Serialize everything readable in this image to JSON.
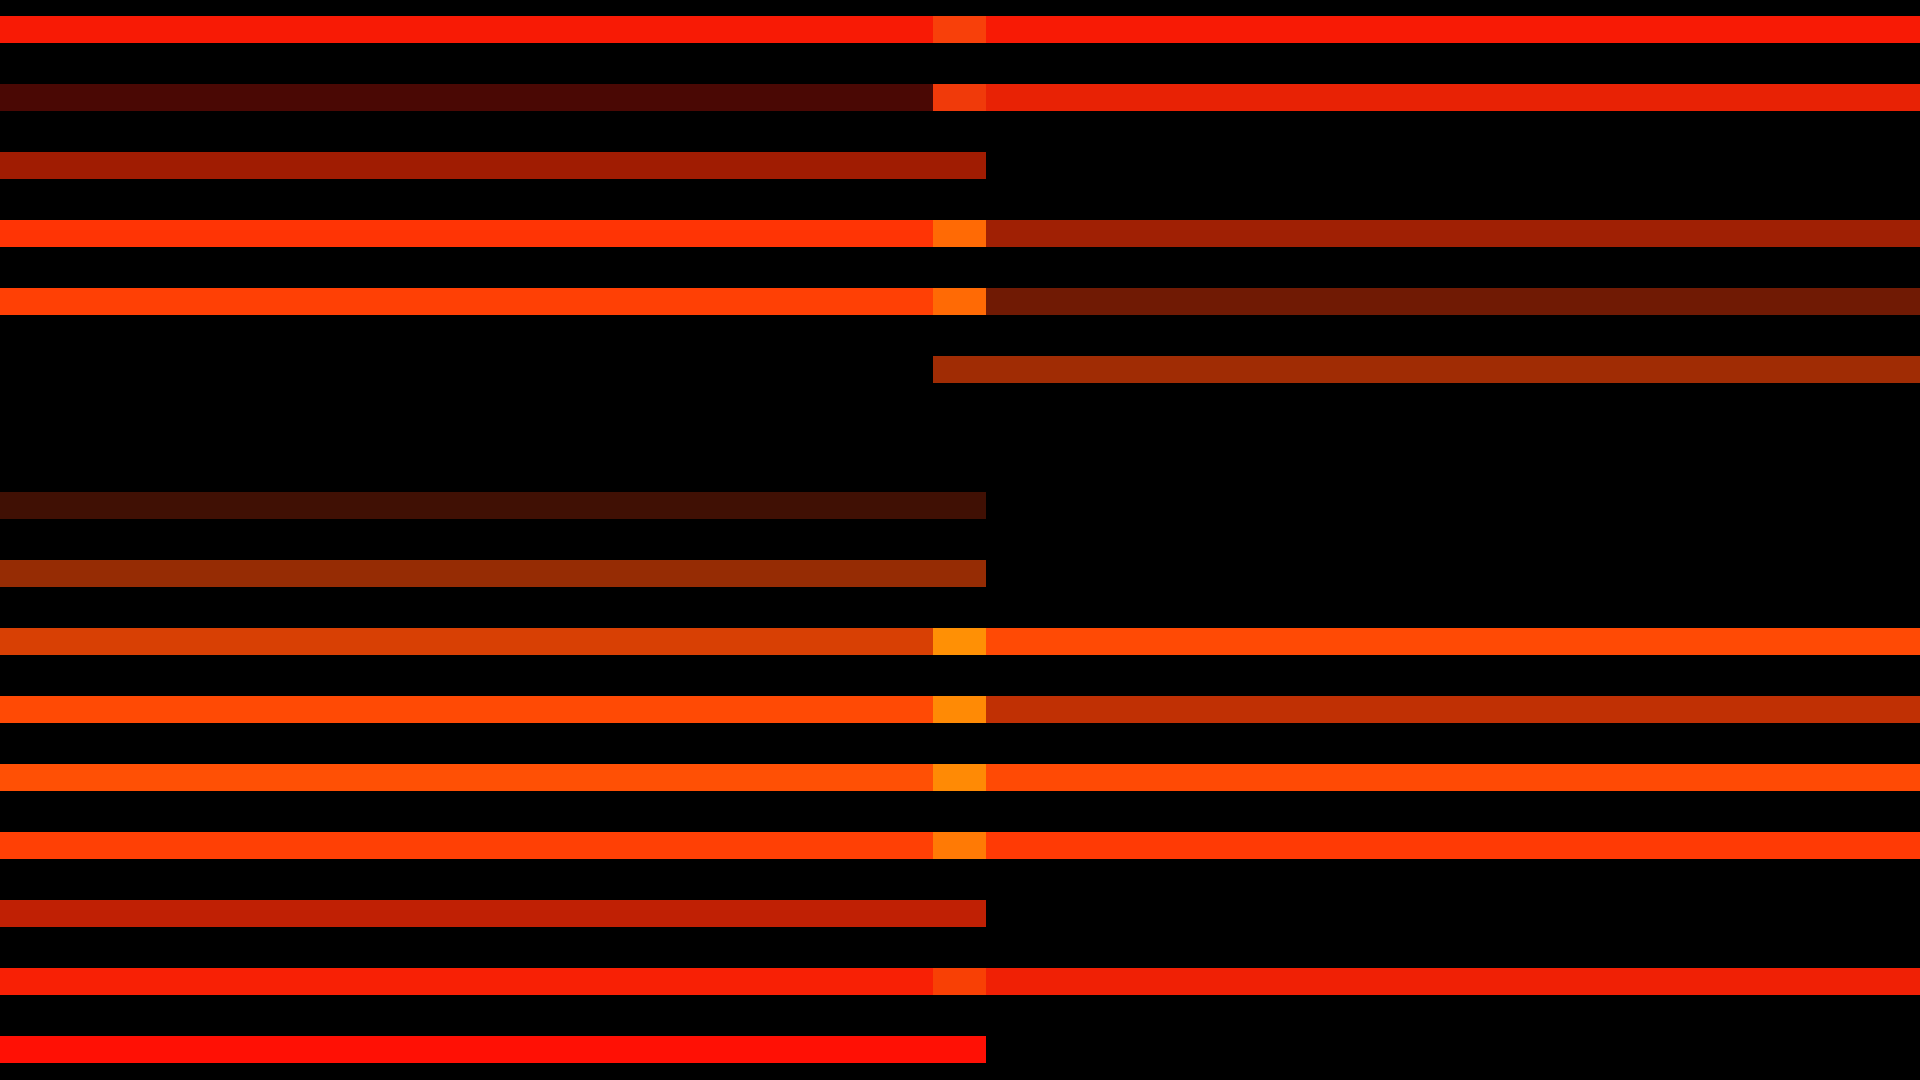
{
  "background": "#000000",
  "rows": [
    {
      "left": "#f81a05",
      "mid": "#f8400a",
      "right": "#f81a05"
    },
    {
      "left": "#4a0804",
      "mid": "#f03a0a",
      "right": "#e82205"
    },
    {
      "left": "#a01c02",
      "mid": "#a01c02",
      "right": null
    },
    {
      "left": "#ff3405",
      "mid": "#ff6a05",
      "right": "#a02004"
    },
    {
      "left": "#ff4005",
      "mid": "#ff6a05",
      "right": "#701a04"
    },
    {
      "left": null,
      "mid": "#a02c04",
      "right": "#a02c04"
    },
    {
      "left": null,
      "mid": null,
      "right": null
    },
    {
      "left": "#401004",
      "mid": "#401004",
      "right": null
    },
    {
      "left": "#962c04",
      "mid": "#962c04",
      "right": null
    },
    {
      "left": "#d84004",
      "mid": "#ff9005",
      "right": "#ff4a05"
    },
    {
      "left": "#ff4a05",
      "mid": "#ff8a05",
      "right": "#c03004"
    },
    {
      "left": "#ff5005",
      "mid": "#ff8a05",
      "right": "#ff4a05"
    },
    {
      "left": "#ff4005",
      "mid": "#ff7a05",
      "right": "#ff3a05"
    },
    {
      "left": "#c02004",
      "mid": "#c02004",
      "right": null
    },
    {
      "left": "#f82005",
      "mid": "#f84005",
      "right": "#f02005"
    },
    {
      "left": "#ff1005",
      "mid": "#ff1005",
      "right": null
    }
  ]
}
